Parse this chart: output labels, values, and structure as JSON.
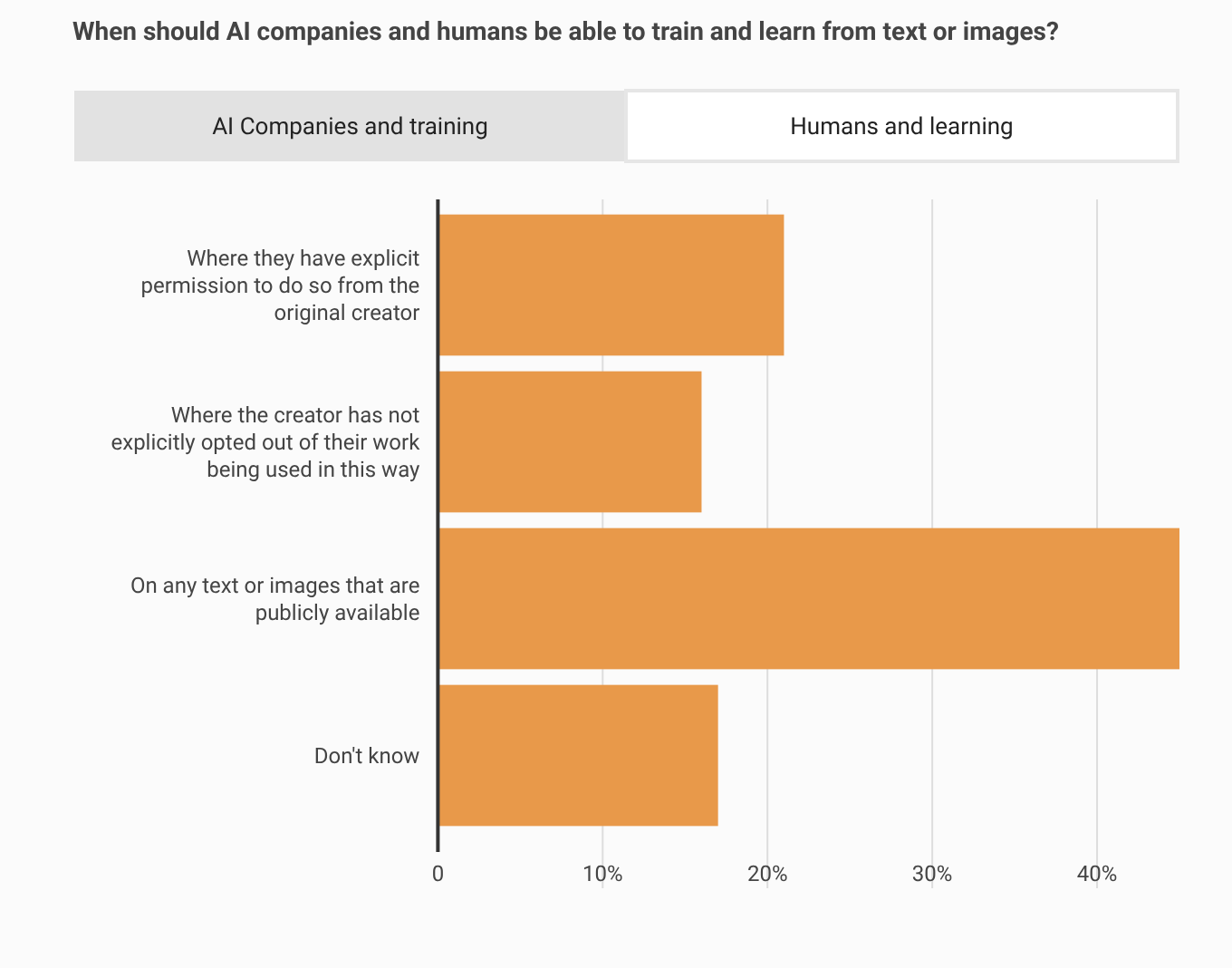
{
  "chart_data": {
    "type": "bar",
    "orientation": "horizontal",
    "title": "When should AI companies and humans be able to train and learn from text or images?",
    "annotations": [
      "AI Companies and training",
      "Humans and learning"
    ],
    "categories": [
      "Where they have explicit permission to do so from the original creator",
      "Where the creator has not explicitly opted out of their work being used in this way",
      "On any text or images that are publicly available",
      "Don't know"
    ],
    "values": [
      21,
      16,
      45,
      17
    ],
    "color": "#e8994a",
    "xlim": [
      0,
      45
    ],
    "xticks": [
      0,
      {
        "value": 10,
        "label": "10%"
      },
      {
        "value": 20,
        "label": "20%"
      },
      {
        "value": 30,
        "label": "30%"
      },
      {
        "value": 40,
        "label": "40%"
      }
    ],
    "grid": "x"
  }
}
